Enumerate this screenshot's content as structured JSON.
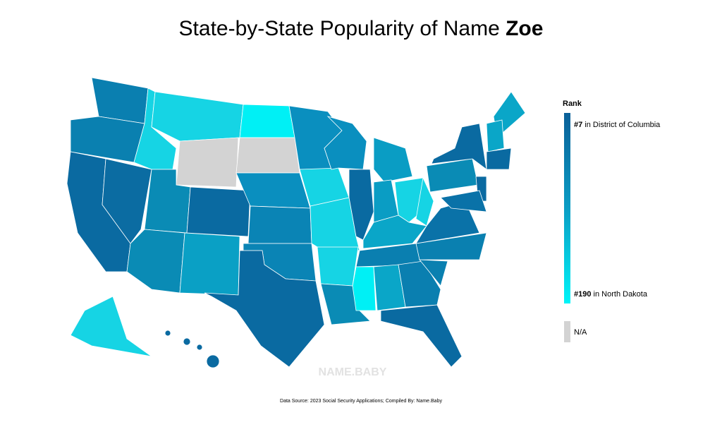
{
  "header": {
    "title_prefix": "State-by-State Popularity of Name",
    "title_name": "Zoe"
  },
  "legend": {
    "title": "Rank",
    "top": {
      "rank": "#7",
      "text": "in District of Columbia"
    },
    "bottom": {
      "rank": "#190",
      "text": "in North Dakota"
    },
    "na": "N/A"
  },
  "watermark": "NAME.BABY",
  "footer": {
    "source": "Data Source: 2023 Social Security Applications; Compiled By: Name.Baby"
  }
}
